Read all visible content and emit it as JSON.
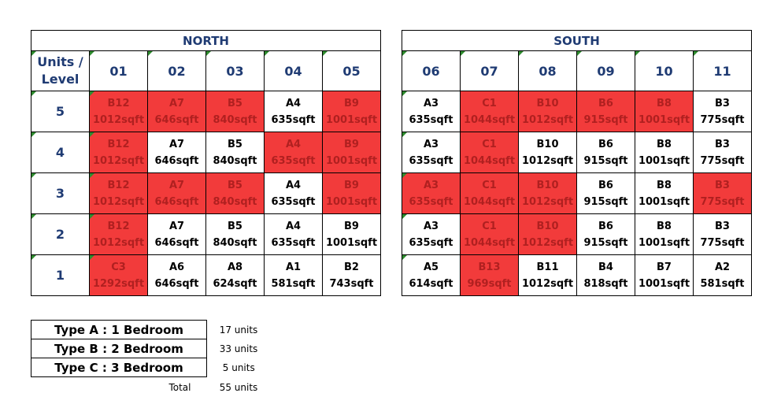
{
  "north": {
    "title": "NORTH",
    "corner_label": "Units / Level",
    "units": [
      "01",
      "02",
      "03",
      "04",
      "05"
    ],
    "rows": [
      {
        "level": "5",
        "cells": [
          {
            "type": "B12",
            "size": "1012sqft",
            "sold": true
          },
          {
            "type": "A7",
            "size": "646sqft",
            "sold": true
          },
          {
            "type": "B5",
            "size": "840sqft",
            "sold": true
          },
          {
            "type": "A4",
            "size": "635sqft",
            "sold": false
          },
          {
            "type": "B9",
            "size": "1001sqft",
            "sold": true
          }
        ]
      },
      {
        "level": "4",
        "cells": [
          {
            "type": "B12",
            "size": "1012sqft",
            "sold": true
          },
          {
            "type": "A7",
            "size": "646sqft",
            "sold": false
          },
          {
            "type": "B5",
            "size": "840sqft",
            "sold": false
          },
          {
            "type": "A4",
            "size": "635sqft",
            "sold": true
          },
          {
            "type": "B9",
            "size": "1001sqft",
            "sold": true
          }
        ]
      },
      {
        "level": "3",
        "cells": [
          {
            "type": "B12",
            "size": "1012sqft",
            "sold": true
          },
          {
            "type": "A7",
            "size": "646sqft",
            "sold": true
          },
          {
            "type": "B5",
            "size": "840sqft",
            "sold": true
          },
          {
            "type": "A4",
            "size": "635sqft",
            "sold": false
          },
          {
            "type": "B9",
            "size": "1001sqft",
            "sold": true
          }
        ]
      },
      {
        "level": "2",
        "cells": [
          {
            "type": "B12",
            "size": "1012sqft",
            "sold": true
          },
          {
            "type": "A7",
            "size": "646sqft",
            "sold": false
          },
          {
            "type": "B5",
            "size": "840sqft",
            "sold": false
          },
          {
            "type": "A4",
            "size": "635sqft",
            "sold": false
          },
          {
            "type": "B9",
            "size": "1001sqft",
            "sold": false
          }
        ]
      },
      {
        "level": "1",
        "cells": [
          {
            "type": "C3",
            "size": "1292sqft",
            "sold": true
          },
          {
            "type": "A6",
            "size": "646sqft",
            "sold": false
          },
          {
            "type": "A8",
            "size": "624sqft",
            "sold": false
          },
          {
            "type": "A1",
            "size": "581sqft",
            "sold": false
          },
          {
            "type": "B2",
            "size": "743sqft",
            "sold": false
          }
        ]
      }
    ]
  },
  "south": {
    "title": "SOUTH",
    "units": [
      "06",
      "07",
      "08",
      "09",
      "10",
      "11"
    ],
    "rows": [
      {
        "cells": [
          {
            "type": "A3",
            "size": "635sqft",
            "sold": false
          },
          {
            "type": "C1",
            "size": "1044sqft",
            "sold": true
          },
          {
            "type": "B10",
            "size": "1012sqft",
            "sold": true
          },
          {
            "type": "B6",
            "size": "915sqft",
            "sold": true
          },
          {
            "type": "B8",
            "size": "1001sqft",
            "sold": true
          },
          {
            "type": "B3",
            "size": "775sqft",
            "sold": false
          }
        ]
      },
      {
        "cells": [
          {
            "type": "A3",
            "size": "635sqft",
            "sold": false
          },
          {
            "type": "C1",
            "size": "1044sqft",
            "sold": true
          },
          {
            "type": "B10",
            "size": "1012sqft",
            "sold": false
          },
          {
            "type": "B6",
            "size": "915sqft",
            "sold": false
          },
          {
            "type": "B8",
            "size": "1001sqft",
            "sold": false
          },
          {
            "type": "B3",
            "size": "775sqft",
            "sold": false
          }
        ]
      },
      {
        "cells": [
          {
            "type": "A3",
            "size": "635sqft",
            "sold": true
          },
          {
            "type": "C1",
            "size": "1044sqft",
            "sold": true
          },
          {
            "type": "B10",
            "size": "1012sqft",
            "sold": true
          },
          {
            "type": "B6",
            "size": "915sqft",
            "sold": false
          },
          {
            "type": "B8",
            "size": "1001sqft",
            "sold": false
          },
          {
            "type": "B3",
            "size": "775sqft",
            "sold": true
          }
        ]
      },
      {
        "cells": [
          {
            "type": "A3",
            "size": "635sqft",
            "sold": false
          },
          {
            "type": "C1",
            "size": "1044sqft",
            "sold": true
          },
          {
            "type": "B10",
            "size": "1012sqft",
            "sold": true
          },
          {
            "type": "B6",
            "size": "915sqft",
            "sold": false
          },
          {
            "type": "B8",
            "size": "1001sqft",
            "sold": false
          },
          {
            "type": "B3",
            "size": "775sqft",
            "sold": false
          }
        ]
      },
      {
        "cells": [
          {
            "type": "A5",
            "size": "614sqft",
            "sold": false
          },
          {
            "type": "B13",
            "size": "969sqft",
            "sold": true
          },
          {
            "type": "B11",
            "size": "1012sqft",
            "sold": false
          },
          {
            "type": "B4",
            "size": "818sqft",
            "sold": false
          },
          {
            "type": "B7",
            "size": "1001sqft",
            "sold": false
          },
          {
            "type": "A2",
            "size": "581sqft",
            "sold": false
          }
        ]
      }
    ]
  },
  "legend": {
    "types": [
      {
        "label": "Type A : 1 Bedroom",
        "count": "17 units"
      },
      {
        "label": "Type B : 2 Bedroom",
        "count": "33 units"
      },
      {
        "label": "Type C : 3 Bedroom",
        "count": "5 units"
      }
    ],
    "total_label": "Total",
    "total_count": "55 units"
  },
  "colors": {
    "sold_fill": "#f23b3b",
    "sold_text": "#b02020",
    "header_text": "#1f3b73",
    "corner_marker": "#2e8b2e"
  }
}
